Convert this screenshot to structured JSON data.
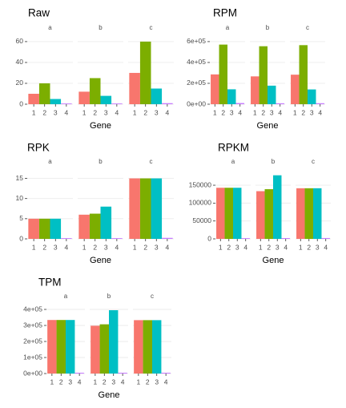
{
  "chart_data": [
    {
      "type": "bar",
      "title": "Raw",
      "xlabel": "Gene",
      "ylabel": "",
      "facets": [
        "a",
        "b",
        "c"
      ],
      "categories": [
        "1",
        "2",
        "3",
        "4"
      ],
      "ylim": [
        0,
        63
      ],
      "yticks": [
        0,
        20,
        40,
        60
      ],
      "ytick_labels": [
        "0",
        "20",
        "40",
        "60"
      ],
      "values": [
        [
          10,
          20,
          5,
          0.4
        ],
        [
          12,
          25,
          8,
          0.4
        ],
        [
          30,
          60,
          15,
          1
        ]
      ]
    },
    {
      "type": "bar",
      "title": "RPM",
      "xlabel": "Gene",
      "ylabel": "",
      "facets": [
        "a",
        "b",
        "c"
      ],
      "categories": [
        "1",
        "2",
        "3",
        "4"
      ],
      "ylim": [
        0,
        630000
      ],
      "yticks": [
        0,
        200000,
        400000,
        600000
      ],
      "ytick_labels": [
        "0e+00",
        "2e+05",
        "4e+05",
        "6e+05"
      ],
      "values": [
        [
          285714,
          571429,
          142857,
          11000
        ],
        [
          266667,
          555556,
          177778,
          8889
        ],
        [
          283019,
          566038,
          141509,
          9434
        ]
      ]
    },
    {
      "type": "bar",
      "title": "RPK",
      "xlabel": "Gene",
      "ylabel": "",
      "facets": [
        "a",
        "b",
        "c"
      ],
      "categories": [
        "1",
        "2",
        "3",
        "4"
      ],
      "ylim": [
        0,
        16.5
      ],
      "yticks": [
        0,
        5,
        10,
        15
      ],
      "ytick_labels": [
        "0",
        "5",
        "10",
        "15"
      ],
      "values": [
        [
          5,
          5,
          5,
          0.1
        ],
        [
          6,
          6.25,
          8,
          0.1
        ],
        [
          15,
          15,
          15,
          0.25
        ]
      ]
    },
    {
      "type": "bar",
      "title": "RPKM",
      "xlabel": "Gene",
      "ylabel": "",
      "facets": [
        "a",
        "b",
        "c"
      ],
      "categories": [
        "1",
        "2",
        "3",
        "4"
      ],
      "ylim": [
        0,
        186000
      ],
      "yticks": [
        0,
        50000,
        100000,
        150000
      ],
      "ytick_labels": [
        "0",
        "50000",
        "100000",
        "150000"
      ],
      "values": [
        [
          142857,
          142857,
          142857,
          2000
        ],
        [
          133333,
          138889,
          177778,
          2222
        ],
        [
          141509,
          141509,
          141509,
          2358
        ]
      ]
    },
    {
      "type": "bar",
      "title": "TPM",
      "xlabel": "Gene",
      "ylabel": "",
      "facets": [
        "a",
        "b",
        "c"
      ],
      "categories": [
        "1",
        "2",
        "3",
        "4"
      ],
      "ylim": [
        0,
        415000
      ],
      "yticks": [
        0,
        100000,
        200000,
        300000,
        400000
      ],
      "ytick_labels": [
        "0e+00",
        "1e+05",
        "2e+05",
        "3e+05",
        "4e+05"
      ],
      "values": [
        [
          334000,
          334000,
          334000,
          5000
        ],
        [
          298000,
          307000,
          395000,
          5000
        ],
        [
          333000,
          333000,
          333000,
          5000
        ]
      ]
    }
  ],
  "colors": {
    "gene_1": "#F8766D",
    "gene_2": "#7CAE00",
    "gene_3": "#00BFC4",
    "gene_4": "#C77CFF",
    "grid": "#ebebeb",
    "text": "#000000",
    "tick_text": "#4d4d4d"
  }
}
